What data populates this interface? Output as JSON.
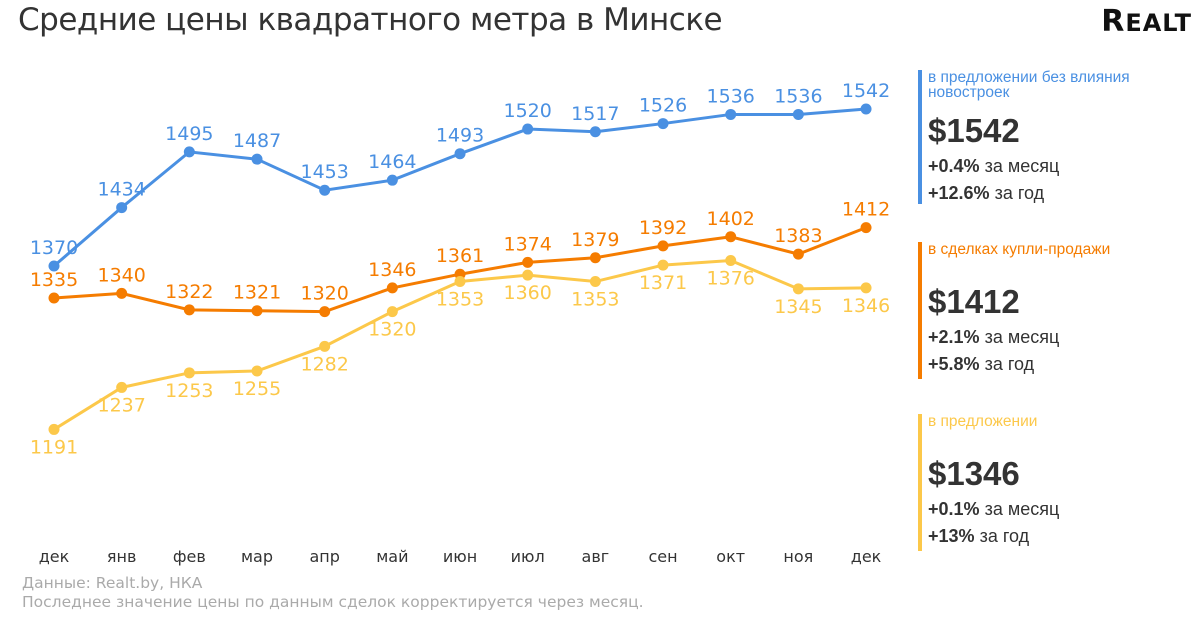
{
  "title": "Средние цены квадратного метра в Минске",
  "logo": "REALT",
  "chart_data": {
    "type": "line",
    "categories": [
      "дек",
      "янв",
      "фев",
      "мар",
      "апр",
      "май",
      "июн",
      "июл",
      "авг",
      "сен",
      "окт",
      "ноя",
      "дек"
    ],
    "series": [
      {
        "name": "в предложении без влияния новостроек",
        "color": "#4a90e2",
        "values": [
          1370,
          1434,
          1495,
          1487,
          1453,
          1464,
          1493,
          1520,
          1517,
          1526,
          1536,
          1536,
          1542
        ]
      },
      {
        "name": "в сделках купли-продажи",
        "color": "#f57c00",
        "values": [
          1335,
          1340,
          1322,
          1321,
          1320,
          1346,
          1361,
          1374,
          1379,
          1392,
          1402,
          1383,
          1412
        ]
      },
      {
        "name": "в предложении",
        "color": "#fcc84a",
        "values": [
          1191,
          1237,
          1253,
          1255,
          1282,
          1320,
          1353,
          1360,
          1353,
          1371,
          1376,
          1345,
          1346
        ]
      }
    ],
    "grid": false,
    "data_labels": true,
    "legend_placement": "right"
  },
  "panels": [
    {
      "label": "в предложении без влияния новостроек",
      "value": "$1542",
      "month_pct": "+0.4%",
      "month_text": "за месяц",
      "year_pct": "+12.6%",
      "year_text": "за год",
      "color": "#4a90e2"
    },
    {
      "label": "в сделках купли-продажи",
      "value": "$1412",
      "month_pct": "+2.1%",
      "month_text": "за месяц",
      "year_pct": "+5.8%",
      "year_text": "за год",
      "color": "#f57c00"
    },
    {
      "label": "в предложении",
      "value": "$1346",
      "month_pct": "+0.1%",
      "month_text": "за месяц",
      "year_pct": "+13%",
      "year_text": "за год",
      "color": "#fcc84a"
    }
  ],
  "source": "Данные: Realt.by, НКА",
  "note": "Последнее значение цены по данным сделок корректируется через месяц."
}
